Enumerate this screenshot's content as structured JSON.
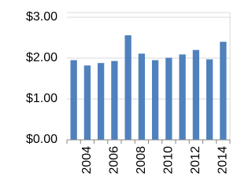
{
  "chart_data": {
    "type": "bar",
    "categories": [
      null,
      "2004",
      null,
      "2006",
      null,
      "2008",
      null,
      "2010",
      null,
      "2012",
      null,
      "2014"
    ],
    "values": [
      1.95,
      1.82,
      1.88,
      1.93,
      2.56,
      2.11,
      1.95,
      2.01,
      2.09,
      2.2,
      1.97,
      2.4
    ],
    "color": "#4f81bd",
    "ylim": [
      0,
      3
    ],
    "yticks": [
      {
        "value": 0,
        "label": "$0.00"
      },
      {
        "value": 1,
        "label": "$1.00"
      },
      {
        "value": 2,
        "label": "$2.00"
      },
      {
        "value": 3,
        "label": "$3.00"
      }
    ],
    "grid": true
  }
}
